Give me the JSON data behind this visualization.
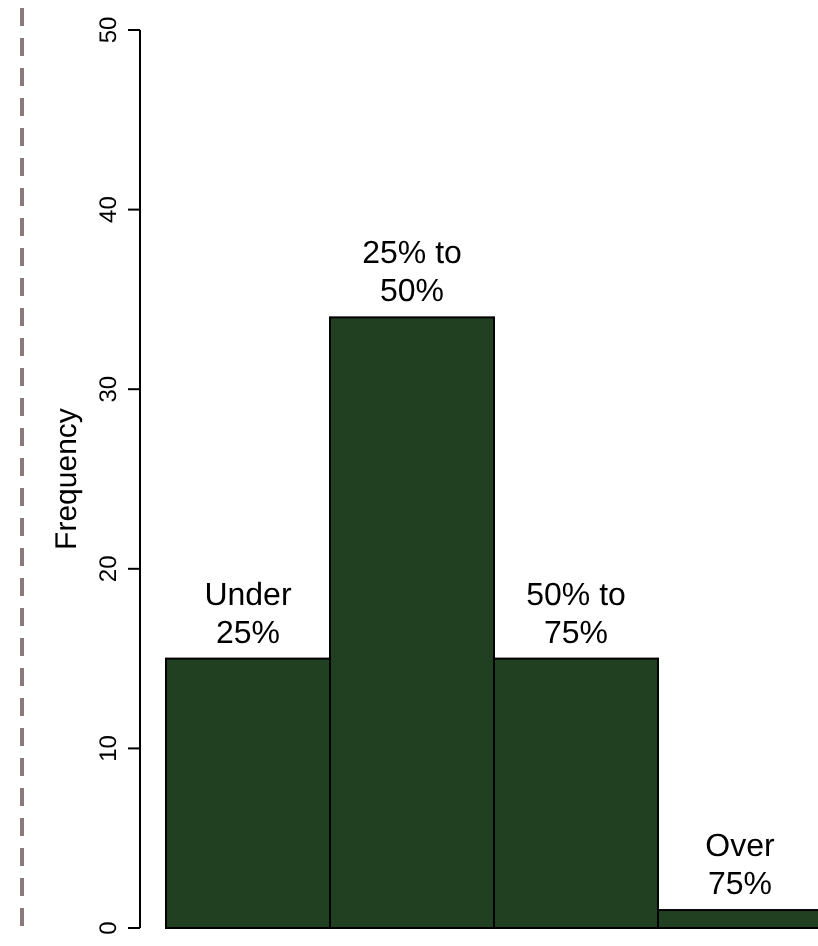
{
  "chart_data": {
    "type": "bar",
    "ylabel": "Frequency",
    "categories": [
      "Under 25%",
      "25% to 50%",
      "50% to 75%",
      "Over 75%"
    ],
    "values": [
      15,
      34,
      15,
      1
    ],
    "color": "#213f21",
    "ylim": [
      0,
      50
    ],
    "yticks": [
      0,
      10,
      20,
      30,
      40,
      50
    ],
    "grid": false
  }
}
